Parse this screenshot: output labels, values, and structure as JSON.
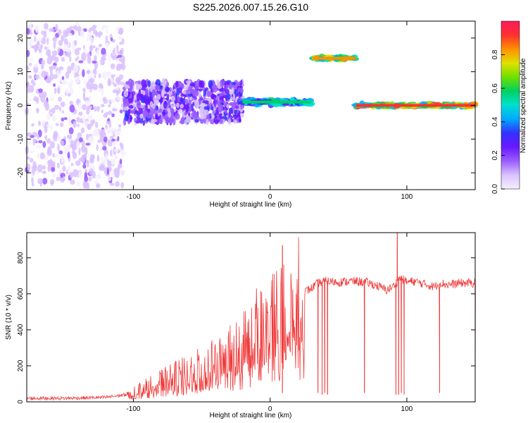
{
  "title": "S225.2026.007.15.26.G10",
  "colors": {
    "axis": "#000000",
    "snr_line": "#f03a3a",
    "colorbar_stops": [
      "#f4f0ff",
      "#d9c2ff",
      "#9a5cff",
      "#6a18ff",
      "#3232ff",
      "#00a8ff",
      "#00e0d0",
      "#00d060",
      "#70e000",
      "#e0e000",
      "#ff9000",
      "#ff3030",
      "#ff1a5a"
    ]
  },
  "chart_data": [
    {
      "type": "heatmap",
      "xlabel": "Height of straight line (km)",
      "ylabel": "Frequency (Hz)",
      "xlim": [
        -178,
        150
      ],
      "ylim": [
        -25,
        25
      ],
      "xticks": [
        -100,
        0,
        100
      ],
      "xtick_labels": [
        "-100",
        "0",
        "100"
      ],
      "yticks": [
        -20,
        -10,
        0,
        10,
        20
      ],
      "ytick_labels": [
        "-20",
        "-10",
        "0",
        "10",
        "20"
      ],
      "colorbar": {
        "label": "Normalized spectral amplitude",
        "range": [
          0,
          1
        ],
        "ticks": [
          0.0,
          0.2,
          0.4,
          0.6,
          0.8
        ],
        "tick_labels": [
          "0.0",
          "0.2",
          "0.4",
          "0.6",
          "0.8"
        ]
      },
      "features": [
        {
          "x_start": -178,
          "x_end": -107,
          "freq_center": 0,
          "freq_spread": 24,
          "amplitude": 0.15
        },
        {
          "x_start": -107,
          "x_end": -20,
          "freq_center": 1,
          "freq_spread": 6,
          "amplitude": 0.3
        },
        {
          "x_start": -20,
          "x_end": 30,
          "freq_center": 1,
          "freq_spread": 1.5,
          "amplitude": 0.6
        },
        {
          "x_start": 31,
          "x_end": 63,
          "freq_center": 14,
          "freq_spread": 1,
          "amplitude": 0.9
        },
        {
          "x_start": 63,
          "x_end": 150,
          "freq_center": 0,
          "freq_spread": 1,
          "amplitude": 0.95
        }
      ]
    },
    {
      "type": "line",
      "xlabel": "Height of straight line (km)",
      "ylabel": "SNR (10 * v/v)",
      "xlim": [
        -178,
        150
      ],
      "ylim": [
        0,
        940
      ],
      "xticks": [
        -100,
        0,
        100
      ],
      "xtick_labels": [
        "-100",
        "0",
        "100"
      ],
      "yticks": [
        0,
        200,
        400,
        600,
        800
      ],
      "ytick_labels": [
        "0",
        "200",
        "400",
        "600",
        "800"
      ],
      "series": [
        {
          "x": [
            -178,
            -150,
            -120,
            -105,
            -100,
            -80,
            -60,
            -40,
            -30,
            -20,
            -15,
            -10,
            -5,
            0,
            5,
            10,
            15,
            20,
            25,
            30,
            35,
            40,
            50,
            60,
            70,
            80,
            85,
            90,
            95,
            100,
            105,
            110,
            115,
            120,
            125,
            130,
            140,
            150
          ],
          "y": [
            20,
            20,
            25,
            40,
            60,
            120,
            170,
            230,
            270,
            330,
            370,
            420,
            450,
            480,
            510,
            540,
            560,
            590,
            610,
            630,
            660,
            670,
            665,
            670,
            665,
            640,
            620,
            640,
            690,
            665,
            670,
            660,
            650,
            640,
            660,
            650,
            660,
            660
          ]
        }
      ],
      "spikes_down": [
        {
          "x": 9,
          "y": 50
        },
        {
          "x": 35,
          "y": 50
        },
        {
          "x": 38,
          "y": 40
        },
        {
          "x": 40,
          "y": 50
        },
        {
          "x": 42,
          "y": 40
        },
        {
          "x": 69,
          "y": 50
        },
        {
          "x": 92,
          "y": 40
        },
        {
          "x": 94,
          "y": 40
        },
        {
          "x": 96,
          "y": 50
        },
        {
          "x": 98,
          "y": 40
        },
        {
          "x": 124,
          "y": 50
        },
        {
          "x": 150,
          "y": 40
        }
      ],
      "spikes_up": [
        {
          "x": 9,
          "y": 870
        },
        {
          "x": 93,
          "y": 940
        }
      ]
    }
  ]
}
